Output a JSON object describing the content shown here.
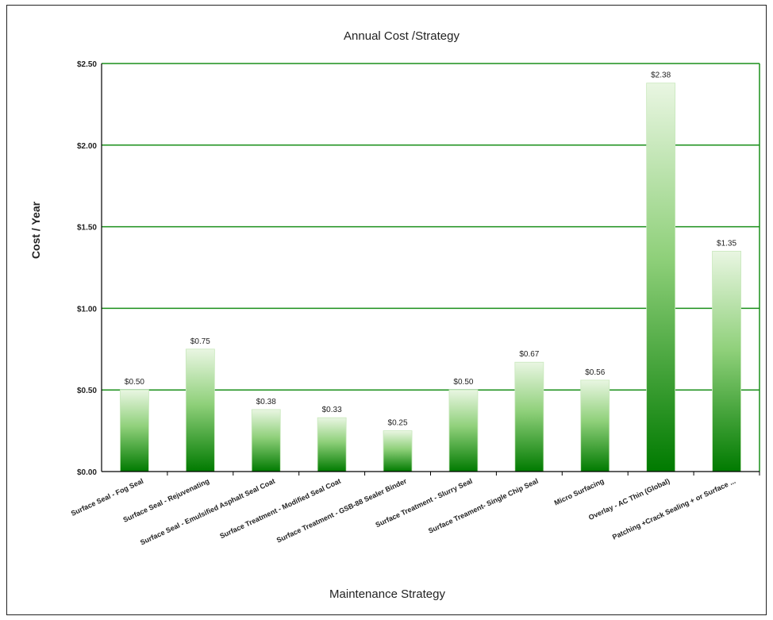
{
  "chart_data": {
    "type": "bar",
    "title": "Annual Cost /Strategy",
    "xlabel": "Maintenance Strategy",
    "ylabel": "Cost / Year",
    "ylim": [
      0,
      2.5
    ],
    "yticks": [
      "$0.00",
      "$0.50",
      "$1.00",
      "$1.50",
      "$2.00",
      "$2.50"
    ],
    "grid": true,
    "categories": [
      "Surface Seal - Fog Seal",
      "Surface Seal - Rejuvenating",
      "Surface Seal - Emulsified Asphalt Seal Coat",
      "Surface Treatment - Modified Seal Coat",
      "Surface Treatment - GSB-88 Sealer Binder",
      "Surface Treatment - Slurry Seal",
      "Surface Treament- Single Chip Seal",
      "Micro Surfacing",
      "Overlay - AC Thin (Global)",
      "Patching +Crack Sealing + or Surface ..."
    ],
    "values": [
      0.5,
      0.75,
      0.38,
      0.33,
      0.25,
      0.5,
      0.67,
      0.56,
      2.38,
      1.35
    ],
    "data_labels": [
      "$0.50",
      "$0.75",
      "$0.38",
      "$0.33",
      "$0.25",
      "$0.50",
      "$0.67",
      "$0.56",
      "$2.38",
      "$1.35"
    ],
    "colors": {
      "bar_dark": "#007a00",
      "bar_light": "#e8f5e0",
      "grid": "#1a8f1a",
      "axis": "#000000"
    }
  }
}
